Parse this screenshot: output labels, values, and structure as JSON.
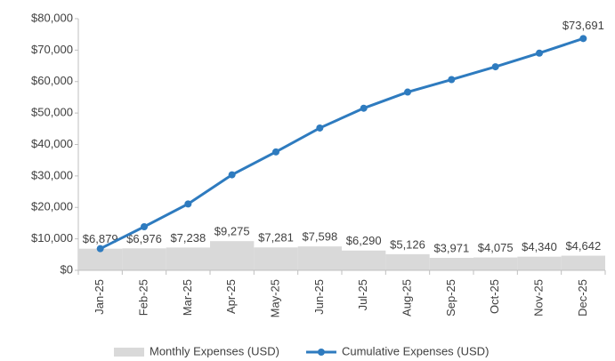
{
  "chart_data": {
    "type": "bar-line",
    "categories": [
      "Jan-25",
      "Feb-25",
      "Mar-25",
      "Apr-25",
      "May-25",
      "Jun-25",
      "Jul-25",
      "Aug-25",
      "Sep-25",
      "Oct-25",
      "Nov-25",
      "Dec-25"
    ],
    "series": [
      {
        "name": "Monthly Expenses (USD)",
        "type": "bar",
        "color": "#d9d9d9",
        "values": [
          6879,
          6976,
          7238,
          9275,
          7281,
          7598,
          6290,
          5126,
          3971,
          4075,
          4340,
          4642
        ],
        "value_labels": [
          "$6,879",
          "$6,976",
          "$7,238",
          "$9,275",
          "$7,281",
          "$7,598",
          "$6,290",
          "$5,126",
          "$3,971",
          "$4,075",
          "$4,340",
          "$4,642"
        ]
      },
      {
        "name": "Cumulative Expenses (USD)",
        "type": "line",
        "color": "#2e7bbf",
        "values": [
          6879,
          13855,
          21093,
          30368,
          37649,
          45247,
          51537,
          56663,
          60634,
          64709,
          69049,
          73691
        ],
        "value_labels": [
          null,
          null,
          null,
          null,
          null,
          null,
          null,
          null,
          null,
          null,
          null,
          "$73,691"
        ]
      }
    ],
    "ylim": [
      0,
      80000
    ],
    "yticks": [
      {
        "value": 0,
        "label": "$0"
      },
      {
        "value": 10000,
        "label": "$10,000"
      },
      {
        "value": 20000,
        "label": "$20,000"
      },
      {
        "value": 30000,
        "label": "$30,000"
      },
      {
        "value": 40000,
        "label": "$40,000"
      },
      {
        "value": 50000,
        "label": "$50,000"
      },
      {
        "value": 60000,
        "label": "$60,000"
      },
      {
        "value": 70000,
        "label": "$70,000"
      },
      {
        "value": 80000,
        "label": "$80,000"
      }
    ],
    "legend": "bottom"
  }
}
